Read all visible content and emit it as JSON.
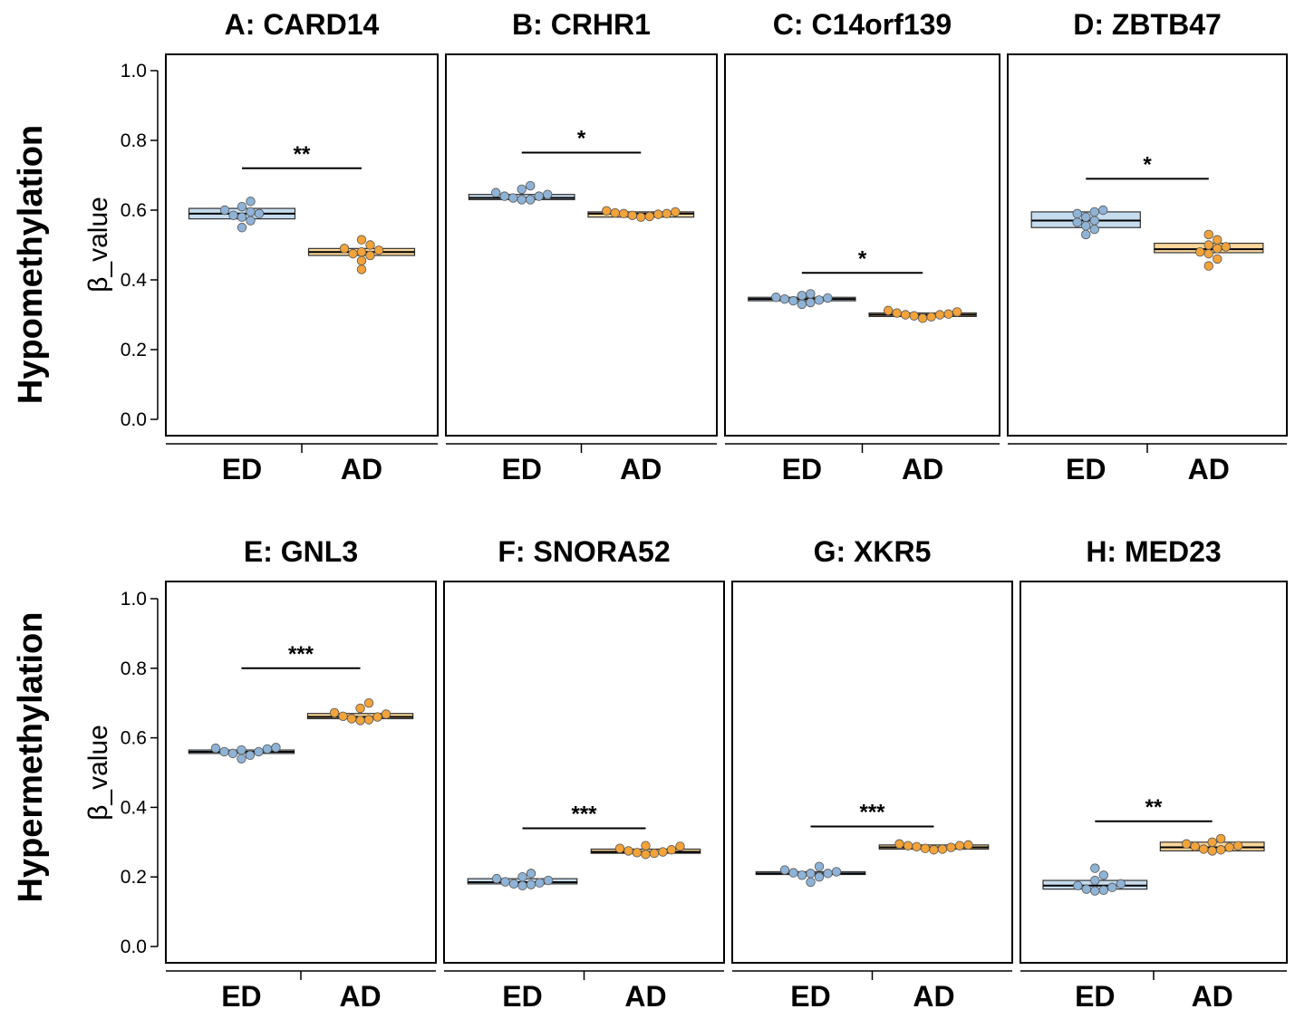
{
  "rows": [
    {
      "label": "Hypomethylation",
      "ylabel": "β_value"
    },
    {
      "label": "Hypermethylation",
      "ylabel": "β_value"
    }
  ],
  "colors": {
    "ed": "#8fb3d6",
    "ed_fill": "#c6dcef",
    "ad": "#f2a33a",
    "ad_fill": "#fbd79a",
    "line": "#000000"
  },
  "chart_data": [
    {
      "type": "box",
      "title": "A: CARD14",
      "categories": [
        "ED",
        "AD"
      ],
      "ylim": [
        0,
        1
      ],
      "yticks": [
        "0.0",
        "0.2",
        "0.4",
        "0.6",
        "0.8",
        "1.0"
      ],
      "series": [
        {
          "name": "ED",
          "box": {
            "q1": 0.575,
            "median": 0.59,
            "q3": 0.605
          },
          "points": [
            0.55,
            0.57,
            0.58,
            0.585,
            0.59,
            0.595,
            0.6,
            0.61,
            0.625
          ]
        },
        {
          "name": "AD",
          "box": {
            "q1": 0.47,
            "median": 0.48,
            "q3": 0.49
          },
          "points": [
            0.43,
            0.455,
            0.47,
            0.475,
            0.48,
            0.485,
            0.49,
            0.5,
            0.515
          ]
        }
      ],
      "significance": "**",
      "sig_y": 0.72
    },
    {
      "type": "box",
      "title": "B: CRHR1",
      "categories": [
        "ED",
        "AD"
      ],
      "ylim": [
        0,
        1
      ],
      "yticks": [
        "0.0",
        "0.2",
        "0.4",
        "0.6",
        "0.8",
        "1.0"
      ],
      "series": [
        {
          "name": "ED",
          "box": {
            "q1": 0.63,
            "median": 0.635,
            "q3": 0.645
          },
          "points": [
            0.63,
            0.63,
            0.635,
            0.64,
            0.64,
            0.645,
            0.65,
            0.66,
            0.67
          ]
        },
        {
          "name": "AD",
          "box": {
            "q1": 0.58,
            "median": 0.59,
            "q3": 0.595
          },
          "points": [
            0.58,
            0.582,
            0.585,
            0.588,
            0.59,
            0.59,
            0.592,
            0.595,
            0.598
          ]
        }
      ],
      "significance": "*",
      "sig_y": 0.765
    },
    {
      "type": "box",
      "title": "C: C14orf139",
      "categories": [
        "ED",
        "AD"
      ],
      "ylim": [
        0,
        1
      ],
      "yticks": [
        "0.0",
        "0.2",
        "0.4",
        "0.6",
        "0.8",
        "1.0"
      ],
      "series": [
        {
          "name": "ED",
          "box": {
            "q1": 0.34,
            "median": 0.345,
            "q3": 0.35
          },
          "points": [
            0.33,
            0.335,
            0.34,
            0.342,
            0.345,
            0.348,
            0.35,
            0.355,
            0.36
          ]
        },
        {
          "name": "AD",
          "box": {
            "q1": 0.295,
            "median": 0.3,
            "q3": 0.305
          },
          "points": [
            0.29,
            0.294,
            0.297,
            0.3,
            0.3,
            0.302,
            0.305,
            0.308,
            0.312
          ]
        }
      ],
      "significance": "*",
      "sig_y": 0.42
    },
    {
      "type": "box",
      "title": "D: ZBTB47",
      "categories": [
        "ED",
        "AD"
      ],
      "ylim": [
        0,
        1
      ],
      "yticks": [
        "0.0",
        "0.2",
        "0.4",
        "0.6",
        "0.8",
        "1.0"
      ],
      "series": [
        {
          "name": "ED",
          "box": {
            "q1": 0.55,
            "median": 0.57,
            "q3": 0.595
          },
          "points": [
            0.53,
            0.545,
            0.555,
            0.565,
            0.57,
            0.58,
            0.59,
            0.595,
            0.6
          ]
        },
        {
          "name": "AD",
          "box": {
            "q1": 0.478,
            "median": 0.488,
            "q3": 0.505
          },
          "points": [
            0.44,
            0.46,
            0.475,
            0.48,
            0.49,
            0.495,
            0.5,
            0.515,
            0.53
          ]
        }
      ],
      "significance": "*",
      "sig_y": 0.69
    },
    {
      "type": "box",
      "title": "E: GNL3",
      "categories": [
        "ED",
        "AD"
      ],
      "ylim": [
        0,
        1
      ],
      "yticks": [
        "0.0",
        "0.2",
        "0.4",
        "0.6",
        "0.8",
        "1.0"
      ],
      "series": [
        {
          "name": "ED",
          "box": {
            "q1": 0.555,
            "median": 0.56,
            "q3": 0.565
          },
          "points": [
            0.54,
            0.55,
            0.555,
            0.56,
            0.56,
            0.565,
            0.568,
            0.57,
            0.572
          ]
        },
        {
          "name": "AD",
          "box": {
            "q1": 0.655,
            "median": 0.66,
            "q3": 0.67
          },
          "points": [
            0.65,
            0.652,
            0.655,
            0.66,
            0.662,
            0.668,
            0.672,
            0.685,
            0.7
          ]
        }
      ],
      "significance": "***",
      "sig_y": 0.8
    },
    {
      "type": "box",
      "title": "F: SNORA52",
      "categories": [
        "ED",
        "AD"
      ],
      "ylim": [
        0,
        1
      ],
      "yticks": [
        "0.0",
        "0.2",
        "0.4",
        "0.6",
        "0.8",
        "1.0"
      ],
      "series": [
        {
          "name": "ED",
          "box": {
            "q1": 0.18,
            "median": 0.185,
            "q3": 0.195
          },
          "points": [
            0.175,
            0.178,
            0.18,
            0.183,
            0.186,
            0.19,
            0.195,
            0.2,
            0.21
          ]
        },
        {
          "name": "AD",
          "box": {
            "q1": 0.268,
            "median": 0.272,
            "q3": 0.28
          },
          "points": [
            0.265,
            0.268,
            0.27,
            0.272,
            0.275,
            0.278,
            0.282,
            0.288,
            0.29
          ]
        }
      ],
      "significance": "***",
      "sig_y": 0.34
    },
    {
      "type": "box",
      "title": "G: XKR5",
      "categories": [
        "ED",
        "AD"
      ],
      "ylim": [
        0,
        1
      ],
      "yticks": [
        "0.0",
        "0.2",
        "0.4",
        "0.6",
        "0.8",
        "1.0"
      ],
      "series": [
        {
          "name": "ED",
          "box": {
            "q1": 0.207,
            "median": 0.21,
            "q3": 0.215
          },
          "points": [
            0.185,
            0.2,
            0.205,
            0.21,
            0.21,
            0.212,
            0.215,
            0.22,
            0.23
          ]
        },
        {
          "name": "AD",
          "box": {
            "q1": 0.28,
            "median": 0.285,
            "q3": 0.292
          },
          "points": [
            0.278,
            0.28,
            0.282,
            0.285,
            0.287,
            0.29,
            0.29,
            0.292,
            0.295
          ]
        }
      ],
      "significance": "***",
      "sig_y": 0.345
    },
    {
      "type": "box",
      "title": "H: MED23",
      "categories": [
        "ED",
        "AD"
      ],
      "ylim": [
        0,
        1
      ],
      "yticks": [
        "0.0",
        "0.2",
        "0.4",
        "0.6",
        "0.8",
        "1.0"
      ],
      "series": [
        {
          "name": "ED",
          "box": {
            "q1": 0.165,
            "median": 0.175,
            "q3": 0.19
          },
          "points": [
            0.16,
            0.162,
            0.165,
            0.17,
            0.175,
            0.18,
            0.19,
            0.205,
            0.225
          ]
        },
        {
          "name": "AD",
          "box": {
            "q1": 0.275,
            "median": 0.285,
            "q3": 0.3
          },
          "points": [
            0.275,
            0.278,
            0.28,
            0.285,
            0.288,
            0.29,
            0.295,
            0.3,
            0.31
          ]
        }
      ],
      "significance": "**",
      "sig_y": 0.36
    }
  ]
}
